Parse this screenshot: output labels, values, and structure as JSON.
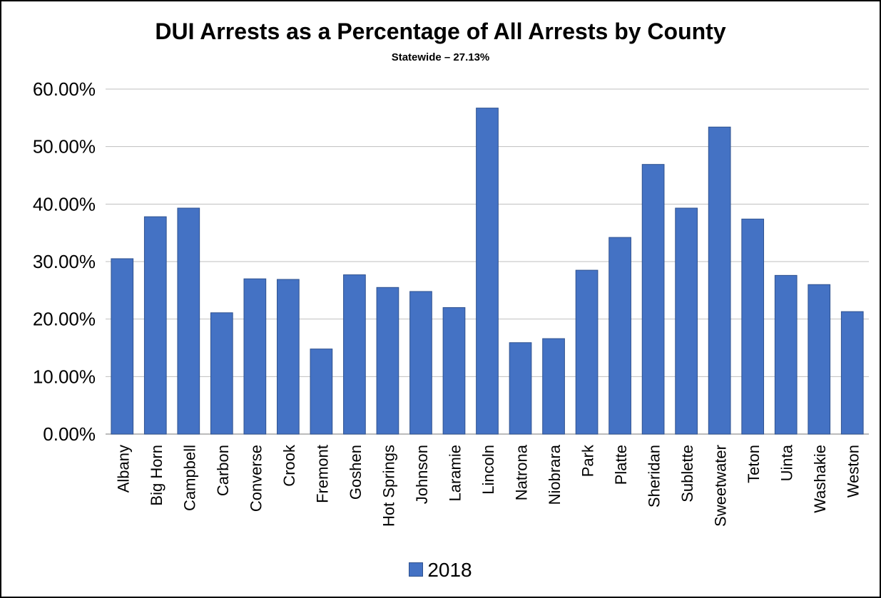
{
  "chart_data": {
    "type": "bar",
    "title": "DUI Arrests as a Percentage of All Arrests by County",
    "subtitle": "Statewide – 27.13%",
    "xlabel": "",
    "ylabel": "",
    "ylim": [
      0,
      60
    ],
    "yticks": [
      0,
      10,
      20,
      30,
      40,
      50,
      60
    ],
    "ytick_labels": [
      "0.00%",
      "10.00%",
      "20.00%",
      "30.00%",
      "40.00%",
      "50.00%",
      "60.00%"
    ],
    "grid": true,
    "legend_position": "bottom",
    "bar_color": "#4472c4",
    "bar_edge_color": "#2f528f",
    "categories": [
      "Albany",
      "Big Horn",
      "Campbell",
      "Carbon",
      "Converse",
      "Crook",
      "Fremont",
      "Goshen",
      "Hot Springs",
      "Johnson",
      "Laramie",
      "Lincoln",
      "Natrona",
      "Niobrara",
      "Park",
      "Platte",
      "Sheridan",
      "Sublette",
      "Sweetwater",
      "Teton",
      "Uinta",
      "Washakie",
      "Weston"
    ],
    "series": [
      {
        "name": "2018",
        "values": [
          30.5,
          37.8,
          39.3,
          21.1,
          27.0,
          26.9,
          14.8,
          27.7,
          25.5,
          24.8,
          22.0,
          56.7,
          15.9,
          16.6,
          28.5,
          34.2,
          46.9,
          39.3,
          53.4,
          37.4,
          27.6,
          26.0,
          21.3
        ]
      }
    ]
  }
}
